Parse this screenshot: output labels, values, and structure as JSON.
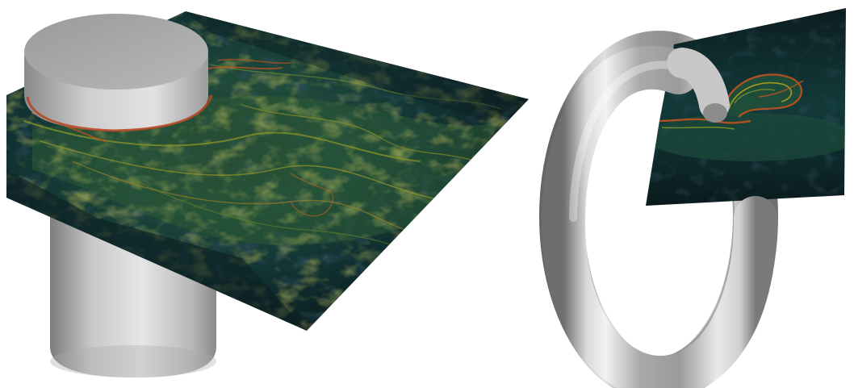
{
  "scene": {
    "background": "#ffffff",
    "left_panel": {
      "object": "cylinder",
      "object_color": "#c9c9c9",
      "slice": "flow-field-plane",
      "colormap": [
        "#0b1a1c",
        "#0f3a3a",
        "#2f6b3f",
        "#7a8f2a",
        "#b5a31f",
        "#c0521f"
      ]
    },
    "right_panel": {
      "object": "torus",
      "object_color": "#d4d4d4",
      "slice": "flow-field-plane",
      "colormap": [
        "#0b1a1c",
        "#0f3a3a",
        "#2f6b3f",
        "#7a8f2a",
        "#b5a31f",
        "#c0521f"
      ]
    }
  }
}
